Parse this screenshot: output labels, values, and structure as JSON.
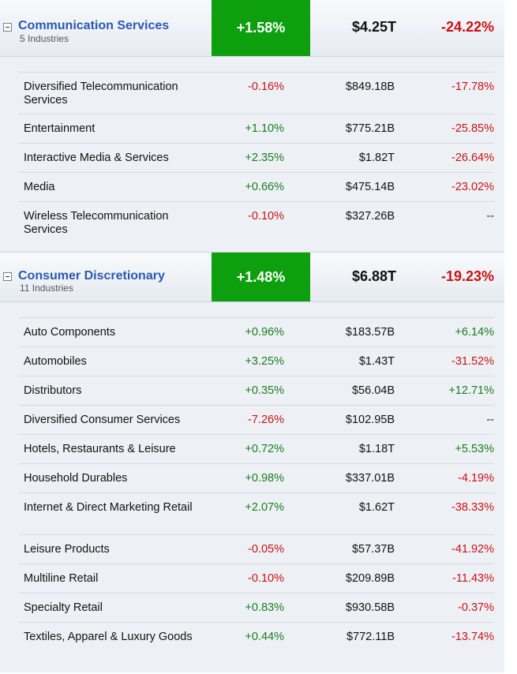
{
  "sectors": [
    {
      "name": "Communication Services",
      "sub": "5 Industries",
      "change": "+1.58%",
      "cap": "$4.25T",
      "ytd": "-24.22%",
      "industries": [
        {
          "name": "Diversified Telecommunication Services",
          "change": "-0.16%",
          "cap": "$849.18B",
          "ytd": "-17.78%"
        },
        {
          "name": "Entertainment",
          "change": "+1.10%",
          "cap": "$775.21B",
          "ytd": "-25.85%"
        },
        {
          "name": "Interactive Media & Services",
          "change": "+2.35%",
          "cap": "$1.82T",
          "ytd": "-26.64%"
        },
        {
          "name": "Media",
          "change": "+0.66%",
          "cap": "$475.14B",
          "ytd": "-23.02%"
        },
        {
          "name": "Wireless Telecommunication Services",
          "change": "-0.10%",
          "cap": "$327.26B",
          "ytd": "--"
        }
      ]
    },
    {
      "name": "Consumer Discretionary",
      "sub": "11 Industries",
      "change": "+1.48%",
      "cap": "$6.88T",
      "ytd": "-19.23%",
      "industries": [
        {
          "name": "Auto Components",
          "change": "+0.96%",
          "cap": "$183.57B",
          "ytd": "+6.14%"
        },
        {
          "name": "Automobiles",
          "change": "+3.25%",
          "cap": "$1.43T",
          "ytd": "-31.52%"
        },
        {
          "name": "Distributors",
          "change": "+0.35%",
          "cap": "$56.04B",
          "ytd": "+12.71%"
        },
        {
          "name": "Diversified Consumer Services",
          "change": "-7.26%",
          "cap": "$102.95B",
          "ytd": "--"
        },
        {
          "name": "Hotels, Restaurants & Leisure",
          "change": "+0.72%",
          "cap": "$1.18T",
          "ytd": "+5.53%"
        },
        {
          "name": "Household Durables",
          "change": "+0.98%",
          "cap": "$337.01B",
          "ytd": "-4.19%"
        },
        {
          "name": "Internet & Direct Marketing Retail",
          "change": "+2.07%",
          "cap": "$1.62T",
          "ytd": "-38.33%"
        },
        {
          "name": "Leisure Products",
          "change": "-0.05%",
          "cap": "$57.37B",
          "ytd": "-41.92%"
        },
        {
          "name": "Multiline Retail",
          "change": "-0.10%",
          "cap": "$209.89B",
          "ytd": "-11.43%"
        },
        {
          "name": "Specialty Retail",
          "change": "+0.83%",
          "cap": "$930.58B",
          "ytd": "-0.37%"
        },
        {
          "name": "Textiles, Apparel & Luxury Goods",
          "change": "+0.44%",
          "cap": "$772.11B",
          "ytd": "-13.74%"
        }
      ]
    }
  ],
  "colors": {
    "positive": "#1a7d1a",
    "negative": "#cc1111",
    "header_green": "#0e9f0e",
    "link_blue": "#2a58b4"
  },
  "icons": {
    "toggle": "collapse-minus-icon"
  }
}
